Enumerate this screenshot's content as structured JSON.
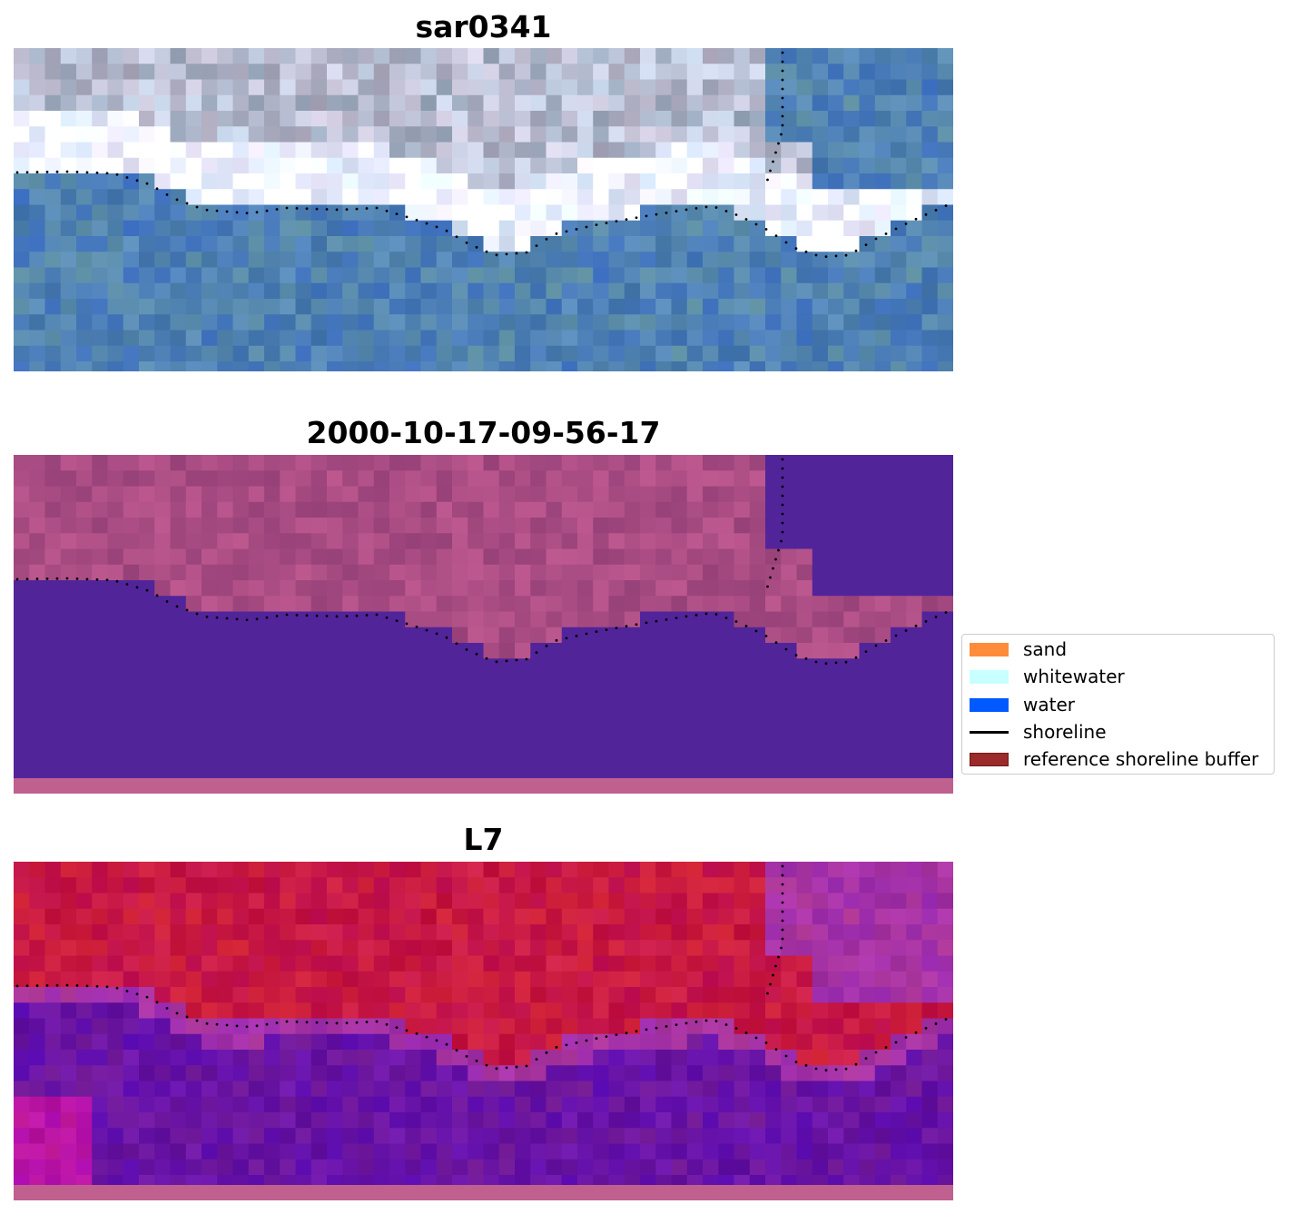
{
  "panels": [
    {
      "title": "sar0341",
      "style": "rgb"
    },
    {
      "title": "2000-10-17-09-56-17",
      "style": "classified"
    },
    {
      "title": "L7",
      "style": "index"
    }
  ],
  "legend": {
    "items": [
      {
        "label": "sand",
        "color": "#ff8c3a",
        "kind": "patch"
      },
      {
        "label": "whitewater",
        "color": "#c8ffff",
        "kind": "patch"
      },
      {
        "label": "water",
        "color": "#005aff",
        "kind": "patch"
      },
      {
        "label": "shoreline",
        "color": "#000000",
        "kind": "line"
      },
      {
        "label": "reference shoreline buffer",
        "color": "#9b2a2a",
        "kind": "patch"
      }
    ]
  },
  "colors": {
    "water_class": "#52249a",
    "land_class": "#a8508a",
    "buffer_strip": "#c0608e",
    "shoreline_dots": "#000000"
  }
}
